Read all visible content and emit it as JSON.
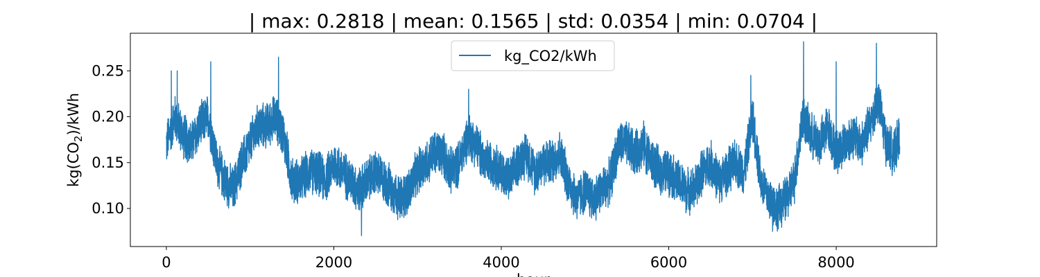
{
  "chart_data": {
    "type": "line",
    "title": "| max: 0.2818 | mean: 0.1565 | std: 0.0354 | min: 0.0704 |",
    "xlabel": "hour",
    "ylabel_parts": [
      "kg(CO",
      "2",
      ")/kWh"
    ],
    "xlim": [
      -430,
      9200
    ],
    "ylim": [
      0.0585,
      0.291
    ],
    "xticks": [
      0,
      2000,
      4000,
      6000,
      8000
    ],
    "xtick_labels": [
      "0",
      "2000",
      "4000",
      "6000",
      "8000"
    ],
    "yticks": [
      0.1,
      0.15,
      0.2,
      0.25
    ],
    "ytick_labels": [
      "0.10",
      "0.15",
      "0.20",
      "0.25"
    ],
    "grid": false,
    "legend_position": "top-center",
    "series": [
      {
        "name": "kg_CO2/kWh",
        "color": "#1f77b4",
        "x_start": 0,
        "x_end": 8759,
        "points_per_anchor": 70,
        "noise_amplitude": 0.028,
        "anchors": [
          [
            0,
            0.17
          ],
          [
            100,
            0.2
          ],
          [
            200,
            0.18
          ],
          [
            300,
            0.17
          ],
          [
            400,
            0.19
          ],
          [
            500,
            0.2
          ],
          [
            600,
            0.15
          ],
          [
            700,
            0.13
          ],
          [
            800,
            0.12
          ],
          [
            900,
            0.15
          ],
          [
            1000,
            0.17
          ],
          [
            1100,
            0.19
          ],
          [
            1200,
            0.19
          ],
          [
            1300,
            0.2
          ],
          [
            1400,
            0.18
          ],
          [
            1500,
            0.13
          ],
          [
            1600,
            0.13
          ],
          [
            1700,
            0.14
          ],
          [
            1800,
            0.14
          ],
          [
            1900,
            0.13
          ],
          [
            2000,
            0.15
          ],
          [
            2100,
            0.14
          ],
          [
            2200,
            0.13
          ],
          [
            2300,
            0.12
          ],
          [
            2400,
            0.13
          ],
          [
            2500,
            0.14
          ],
          [
            2600,
            0.13
          ],
          [
            2700,
            0.12
          ],
          [
            2800,
            0.11
          ],
          [
            2900,
            0.12
          ],
          [
            3000,
            0.14
          ],
          [
            3100,
            0.15
          ],
          [
            3200,
            0.16
          ],
          [
            3300,
            0.16
          ],
          [
            3400,
            0.14
          ],
          [
            3500,
            0.15
          ],
          [
            3600,
            0.18
          ],
          [
            3700,
            0.17
          ],
          [
            3800,
            0.15
          ],
          [
            3900,
            0.15
          ],
          [
            4000,
            0.14
          ],
          [
            4100,
            0.13
          ],
          [
            4200,
            0.15
          ],
          [
            4300,
            0.16
          ],
          [
            4400,
            0.14
          ],
          [
            4500,
            0.15
          ],
          [
            4600,
            0.15
          ],
          [
            4700,
            0.16
          ],
          [
            4800,
            0.13
          ],
          [
            4900,
            0.11
          ],
          [
            5000,
            0.12
          ],
          [
            5100,
            0.11
          ],
          [
            5200,
            0.12
          ],
          [
            5300,
            0.13
          ],
          [
            5400,
            0.17
          ],
          [
            5500,
            0.17
          ],
          [
            5600,
            0.16
          ],
          [
            5700,
            0.17
          ],
          [
            5800,
            0.15
          ],
          [
            5900,
            0.14
          ],
          [
            6000,
            0.14
          ],
          [
            6100,
            0.13
          ],
          [
            6200,
            0.12
          ],
          [
            6300,
            0.12
          ],
          [
            6400,
            0.14
          ],
          [
            6500,
            0.15
          ],
          [
            6600,
            0.13
          ],
          [
            6700,
            0.14
          ],
          [
            6800,
            0.15
          ],
          [
            6900,
            0.14
          ],
          [
            7000,
            0.2
          ],
          [
            7100,
            0.13
          ],
          [
            7200,
            0.11
          ],
          [
            7300,
            0.1
          ],
          [
            7400,
            0.11
          ],
          [
            7500,
            0.13
          ],
          [
            7600,
            0.2
          ],
          [
            7700,
            0.18
          ],
          [
            7800,
            0.17
          ],
          [
            7900,
            0.19
          ],
          [
            8000,
            0.16
          ],
          [
            8100,
            0.17
          ],
          [
            8200,
            0.18
          ],
          [
            8300,
            0.17
          ],
          [
            8400,
            0.19
          ],
          [
            8500,
            0.22
          ],
          [
            8600,
            0.17
          ],
          [
            8700,
            0.16
          ],
          [
            8759,
            0.18
          ]
        ],
        "peaks": [
          [
            60,
            0.25
          ],
          [
            130,
            0.25
          ],
          [
            530,
            0.26
          ],
          [
            1340,
            0.265
          ],
          [
            2330,
            0.0704
          ],
          [
            3610,
            0.23
          ],
          [
            6980,
            0.245
          ],
          [
            7240,
            0.075
          ],
          [
            7610,
            0.2818
          ],
          [
            8000,
            0.26
          ],
          [
            8480,
            0.28
          ]
        ]
      }
    ]
  }
}
